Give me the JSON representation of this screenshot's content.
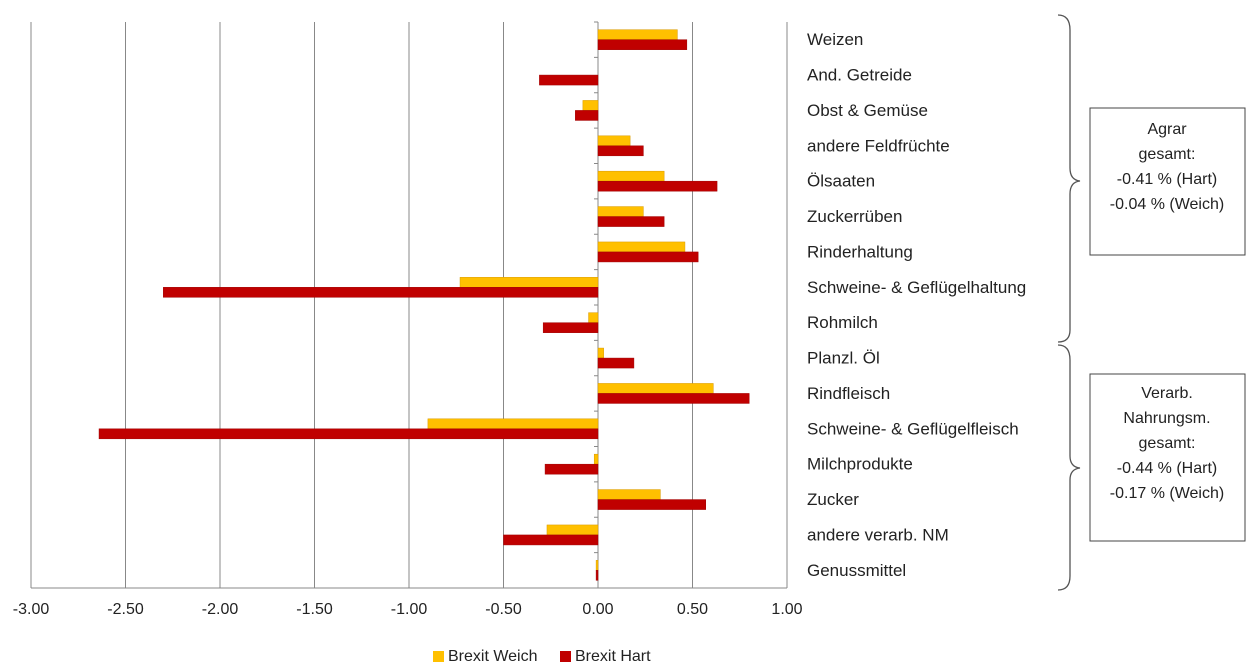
{
  "chart_data": {
    "type": "barh",
    "categories": [
      "Weizen",
      "And. Getreide",
      "Obst & Gemüse",
      "andere Feldfrüchte",
      "Ölsaaten",
      "Zuckerrüben",
      "Rinderhaltung",
      "Schweine- & Geflügelhaltung",
      "Rohmilch",
      "Planzl. Öl",
      "Rindfleisch",
      "Schweine- & Geflügelfleisch",
      "Milchprodukte",
      "Zucker",
      "andere verarb. NM",
      "Genussmittel"
    ],
    "series": [
      {
        "name": "Brexit Weich",
        "color": "#ffc000",
        "values": [
          0.42,
          0,
          -0.08,
          0.17,
          0.35,
          0.24,
          0.46,
          -0.73,
          -0.05,
          0.03,
          0.61,
          -0.9,
          -0.02,
          0.33,
          -0.27,
          -0.01
        ]
      },
      {
        "name": "Brexit Hart",
        "color": "#c00000",
        "values": [
          0.47,
          -0.31,
          -0.12,
          0.24,
          0.63,
          0.35,
          0.53,
          -2.3,
          -0.29,
          0.19,
          0.8,
          -2.64,
          -0.28,
          0.57,
          -0.5,
          -0.01
        ]
      }
    ],
    "xlim": [
      -3,
      1
    ],
    "xticks": [
      {
        "value": -3,
        "label": "-3.00"
      },
      {
        "value": -2.5,
        "label": "-2.50"
      },
      {
        "value": -2,
        "label": "-2.00"
      },
      {
        "value": -1.5,
        "label": "-1.50"
      },
      {
        "value": -1,
        "label": "-1.00"
      },
      {
        "value": -0.5,
        "label": "-0.50"
      },
      {
        "value": 0,
        "label": "0.00"
      },
      {
        "value": 0.5,
        "label": "0.50"
      },
      {
        "value": 1,
        "label": "1.00"
      }
    ],
    "grid": true,
    "legend": "bottom",
    "annotations": [
      {
        "lines": [
          "Agrar",
          "gesamt:",
          "-0.41 % (Hart)",
          "-0.04 % (Weich)"
        ]
      },
      {
        "lines": [
          "Verarb.",
          "Nahrungsm.",
          "gesamt:",
          "-0.44 % (Hart)",
          "-0.17 % (Weich)"
        ]
      }
    ]
  }
}
